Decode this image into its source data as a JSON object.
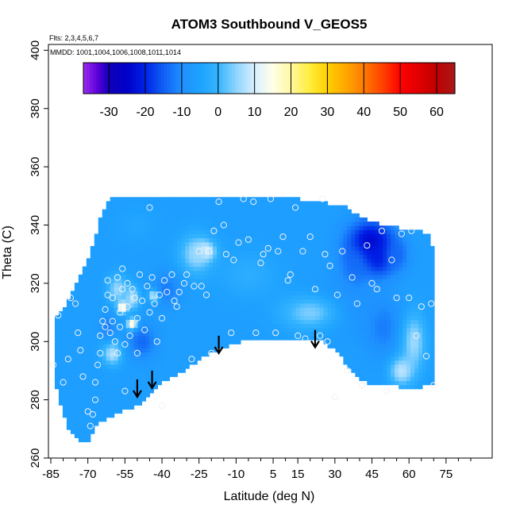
{
  "chart_data": {
    "type": "heatmap",
    "title": "ATOM3 Southbound V_GEOS5",
    "annotations": {
      "flights": "Flts: 2,3,4,5,6,7",
      "dates": "MMDD: 1001,1004,1006,1008,1011,1014"
    },
    "xlabel": "Latitude (deg N)",
    "ylabel": "Theta (C)",
    "xlim": [
      -85,
      85
    ],
    "ylim": [
      260,
      402
    ],
    "x_ticks": [
      -85,
      -70,
      -55,
      -40,
      -25,
      -10,
      5,
      15,
      30,
      45,
      60,
      75
    ],
    "y_ticks": [
      260,
      280,
      300,
      320,
      340,
      360,
      380,
      400
    ],
    "colorbar": {
      "ticks": [
        -30,
        -20,
        -10,
        0,
        10,
        20,
        30,
        40,
        50,
        60
      ],
      "min": -37,
      "max": 65,
      "stops": [
        {
          "v": -37,
          "c": "#9a2cf0"
        },
        {
          "v": -33,
          "c": "#5a00d8"
        },
        {
          "v": -30,
          "c": "#1000b8"
        },
        {
          "v": -25,
          "c": "#0000c8"
        },
        {
          "v": -20,
          "c": "#0022e6"
        },
        {
          "v": -15,
          "c": "#1060f4"
        },
        {
          "v": -10,
          "c": "#1e90ff"
        },
        {
          "v": -5,
          "c": "#1ea2ff"
        },
        {
          "v": 0,
          "c": "#35b4ff"
        },
        {
          "v": 5,
          "c": "#8fd4ff"
        },
        {
          "v": 10,
          "c": "#d8f0ff"
        },
        {
          "v": 15,
          "c": "#ffffe8"
        },
        {
          "v": 20,
          "c": "#fff8a0"
        },
        {
          "v": 25,
          "c": "#ffee40"
        },
        {
          "v": 30,
          "c": "#ffd000"
        },
        {
          "v": 35,
          "c": "#ffa800"
        },
        {
          "v": 40,
          "c": "#ff7a00"
        },
        {
          "v": 45,
          "c": "#ff4400"
        },
        {
          "v": 50,
          "c": "#ff0000"
        },
        {
          "v": 55,
          "c": "#e00000"
        },
        {
          "v": 60,
          "c": "#c00000"
        },
        {
          "v": 65,
          "c": "#aa1818"
        }
      ]
    },
    "field": {
      "outline": [
        [
          -84,
          293
        ],
        [
          -83,
          309
        ],
        [
          -80,
          311
        ],
        [
          -77,
          316
        ],
        [
          -75,
          319
        ],
        [
          -72,
          324
        ],
        [
          -70,
          328
        ],
        [
          -67,
          335
        ],
        [
          -65,
          342
        ],
        [
          -62,
          348
        ],
        [
          -60,
          350
        ],
        [
          -40,
          350
        ],
        [
          -20,
          350
        ],
        [
          0,
          349
        ],
        [
          15,
          349
        ],
        [
          25,
          348
        ],
        [
          35,
          346
        ],
        [
          40,
          343
        ],
        [
          45,
          341
        ],
        [
          50,
          340
        ],
        [
          57,
          339
        ],
        [
          63,
          338
        ],
        [
          69,
          337
        ],
        [
          70,
          328
        ],
        [
          70,
          310
        ],
        [
          70,
          298
        ],
        [
          70,
          285
        ],
        [
          60,
          284
        ],
        [
          50,
          285
        ],
        [
          45,
          285
        ],
        [
          40,
          287
        ],
        [
          35,
          292
        ],
        [
          30,
          297
        ],
        [
          25,
          300
        ],
        [
          20,
          301
        ],
        [
          10,
          301
        ],
        [
          0,
          301
        ],
        [
          -8,
          300
        ],
        [
          -15,
          298
        ],
        [
          -20,
          296
        ],
        [
          -26,
          293
        ],
        [
          -33,
          289
        ],
        [
          -38,
          287
        ],
        [
          -42,
          284
        ],
        [
          -46,
          281
        ],
        [
          -49,
          278
        ],
        [
          -53,
          277
        ],
        [
          -57,
          276
        ],
        [
          -60,
          274
        ],
        [
          -66,
          272
        ],
        [
          -68,
          268
        ],
        [
          -70,
          266
        ],
        [
          -72,
          265
        ],
        [
          -75,
          267
        ],
        [
          -78,
          270
        ],
        [
          -81,
          278
        ],
        [
          -83,
          286
        ]
      ],
      "blobs": [
        {
          "lat": 44,
          "theta": 333,
          "rlat": 9,
          "rth": 8,
          "value": -28
        },
        {
          "lat": 48,
          "theta": 330,
          "rlat": 6,
          "rth": 7,
          "value": -22
        },
        {
          "lat": 38,
          "theta": 326,
          "rlat": 6,
          "rth": 9,
          "value": -14
        },
        {
          "lat": 55,
          "theta": 330,
          "rlat": 5,
          "rth": 6,
          "value": -14
        },
        {
          "lat": 32,
          "theta": 312,
          "rlat": 14,
          "rth": 9,
          "value": -10
        },
        {
          "lat": 50,
          "theta": 305,
          "rlat": 8,
          "rth": 10,
          "value": -12
        },
        {
          "lat": 62,
          "theta": 300,
          "rlat": 5,
          "rth": 10,
          "value": 6
        },
        {
          "lat": 57,
          "theta": 290,
          "rlat": 5,
          "rth": 5,
          "value": 8
        },
        {
          "lat": -23,
          "theta": 331,
          "rlat": 4,
          "rth": 3,
          "value": 22
        },
        {
          "lat": -26,
          "theta": 330,
          "rlat": 7,
          "rth": 7,
          "value": 6
        },
        {
          "lat": -43,
          "theta": 316,
          "rlat": 2,
          "rth": 2,
          "value": 26
        },
        {
          "lat": -52,
          "theta": 306,
          "rlat": 2,
          "rth": 2,
          "value": 28
        },
        {
          "lat": -56,
          "theta": 312,
          "rlat": 2,
          "rth": 2,
          "value": 24
        },
        {
          "lat": -52,
          "theta": 315,
          "rlat": 3,
          "rth": 4,
          "value": 8
        },
        {
          "lat": -58,
          "theta": 318,
          "rlat": 4,
          "rth": 5,
          "value": 6
        },
        {
          "lat": -38,
          "theta": 318,
          "rlat": 6,
          "rth": 6,
          "value": -12
        },
        {
          "lat": -60,
          "theta": 296,
          "rlat": 4,
          "rth": 4,
          "value": 8
        },
        {
          "lat": -62,
          "theta": 305,
          "rlat": 3,
          "rth": 4,
          "value": -12
        },
        {
          "lat": -48,
          "theta": 300,
          "rlat": 6,
          "rth": 6,
          "value": -14
        },
        {
          "lat": -5,
          "theta": 323,
          "rlat": 12,
          "rth": 8,
          "value": -2
        },
        {
          "lat": 12,
          "theta": 338,
          "rlat": 10,
          "rth": 6,
          "value": -6
        },
        {
          "lat": -50,
          "theta": 340,
          "rlat": 8,
          "rth": 6,
          "value": -4
        },
        {
          "lat": 20,
          "theta": 310,
          "rlat": 12,
          "rth": 6,
          "value": 4
        }
      ],
      "base_value": -6
    },
    "observation_points": [
      [
        -84,
        292
      ],
      [
        -82,
        309
      ],
      [
        -80,
        286
      ],
      [
        -78,
        294
      ],
      [
        -77,
        315
      ],
      [
        -75,
        313
      ],
      [
        -74,
        303
      ],
      [
        -73,
        297
      ],
      [
        -72,
        288
      ],
      [
        -70,
        276
      ],
      [
        -69,
        271
      ],
      [
        -68,
        275
      ],
      [
        -67,
        280
      ],
      [
        -67,
        286
      ],
      [
        -66,
        292
      ],
      [
        -65,
        296
      ],
      [
        -65,
        302
      ],
      [
        -64,
        307
      ],
      [
        -63,
        305
      ],
      [
        -63,
        311
      ],
      [
        -62,
        316
      ],
      [
        -62,
        321
      ],
      [
        -61,
        303
      ],
      [
        -60,
        307
      ],
      [
        -60,
        315
      ],
      [
        -59,
        300
      ],
      [
        -58,
        296
      ],
      [
        -58,
        322
      ],
      [
        -57,
        305
      ],
      [
        -57,
        310
      ],
      [
        -56,
        318
      ],
      [
        -56,
        325
      ],
      [
        -55,
        283
      ],
      [
        -55,
        299
      ],
      [
        -54,
        312
      ],
      [
        -54,
        320
      ],
      [
        -53,
        302
      ],
      [
        -52,
        306
      ],
      [
        -52,
        318
      ],
      [
        -51,
        315
      ],
      [
        -50,
        308
      ],
      [
        -50,
        296
      ],
      [
        -49,
        323
      ],
      [
        -48,
        314
      ],
      [
        -47,
        304
      ],
      [
        -46,
        319
      ],
      [
        -45,
        310
      ],
      [
        -45,
        346
      ],
      [
        -44,
        322
      ],
      [
        -43,
        313
      ],
      [
        -42,
        300
      ],
      [
        -41,
        316
      ],
      [
        -40,
        308
      ],
      [
        -40,
        278
      ],
      [
        -39,
        321
      ],
      [
        -38,
        317
      ],
      [
        -36,
        323
      ],
      [
        -35,
        314
      ],
      [
        -34,
        312
      ],
      [
        -33,
        317
      ],
      [
        -31,
        320
      ],
      [
        -30,
        323
      ],
      [
        -28,
        294
      ],
      [
        -27,
        319
      ],
      [
        -25,
        331
      ],
      [
        -24,
        319
      ],
      [
        -22,
        316
      ],
      [
        -21,
        331
      ],
      [
        -20,
        296
      ],
      [
        -19,
        338
      ],
      [
        -17,
        348
      ],
      [
        -15,
        340
      ],
      [
        -14,
        330
      ],
      [
        -12,
        303
      ],
      [
        -11,
        328
      ],
      [
        -9,
        334
      ],
      [
        -7,
        349
      ],
      [
        -5,
        335
      ],
      [
        -3,
        348
      ],
      [
        -2,
        303
      ],
      [
        0,
        327
      ],
      [
        1,
        330
      ],
      [
        3,
        332
      ],
      [
        4,
        349
      ],
      [
        6,
        303
      ],
      [
        7,
        331
      ],
      [
        9,
        336
      ],
      [
        11,
        321
      ],
      [
        12,
        323
      ],
      [
        14,
        346
      ],
      [
        15,
        302
      ],
      [
        17,
        331
      ],
      [
        18,
        301
      ],
      [
        20,
        336
      ],
      [
        22,
        318
      ],
      [
        24,
        302
      ],
      [
        25,
        349
      ],
      [
        27,
        300
      ],
      [
        28,
        326
      ],
      [
        31,
        316
      ],
      [
        33,
        331
      ],
      [
        35,
        290
      ],
      [
        37,
        322
      ],
      [
        39,
        313
      ],
      [
        41,
        285
      ],
      [
        43,
        333
      ],
      [
        45,
        320
      ],
      [
        47,
        318
      ],
      [
        49,
        338
      ],
      [
        51,
        283
      ],
      [
        53,
        328
      ],
      [
        55,
        315
      ],
      [
        57,
        337
      ],
      [
        60,
        315
      ],
      [
        63,
        302
      ],
      [
        65,
        312
      ],
      [
        67,
        295
      ],
      [
        69,
        313
      ],
      [
        70,
        285
      ],
      [
        30,
        281
      ],
      [
        26,
        330
      ],
      [
        61,
        338
      ]
    ],
    "arrows": [
      {
        "lat": -50,
        "theta": 281
      },
      {
        "lat": -44,
        "theta": 284
      },
      {
        "lat": -17,
        "theta": 296
      },
      {
        "lat": 22,
        "theta": 298
      }
    ],
    "grid": false,
    "legend": "colorbar inside plot, top"
  }
}
